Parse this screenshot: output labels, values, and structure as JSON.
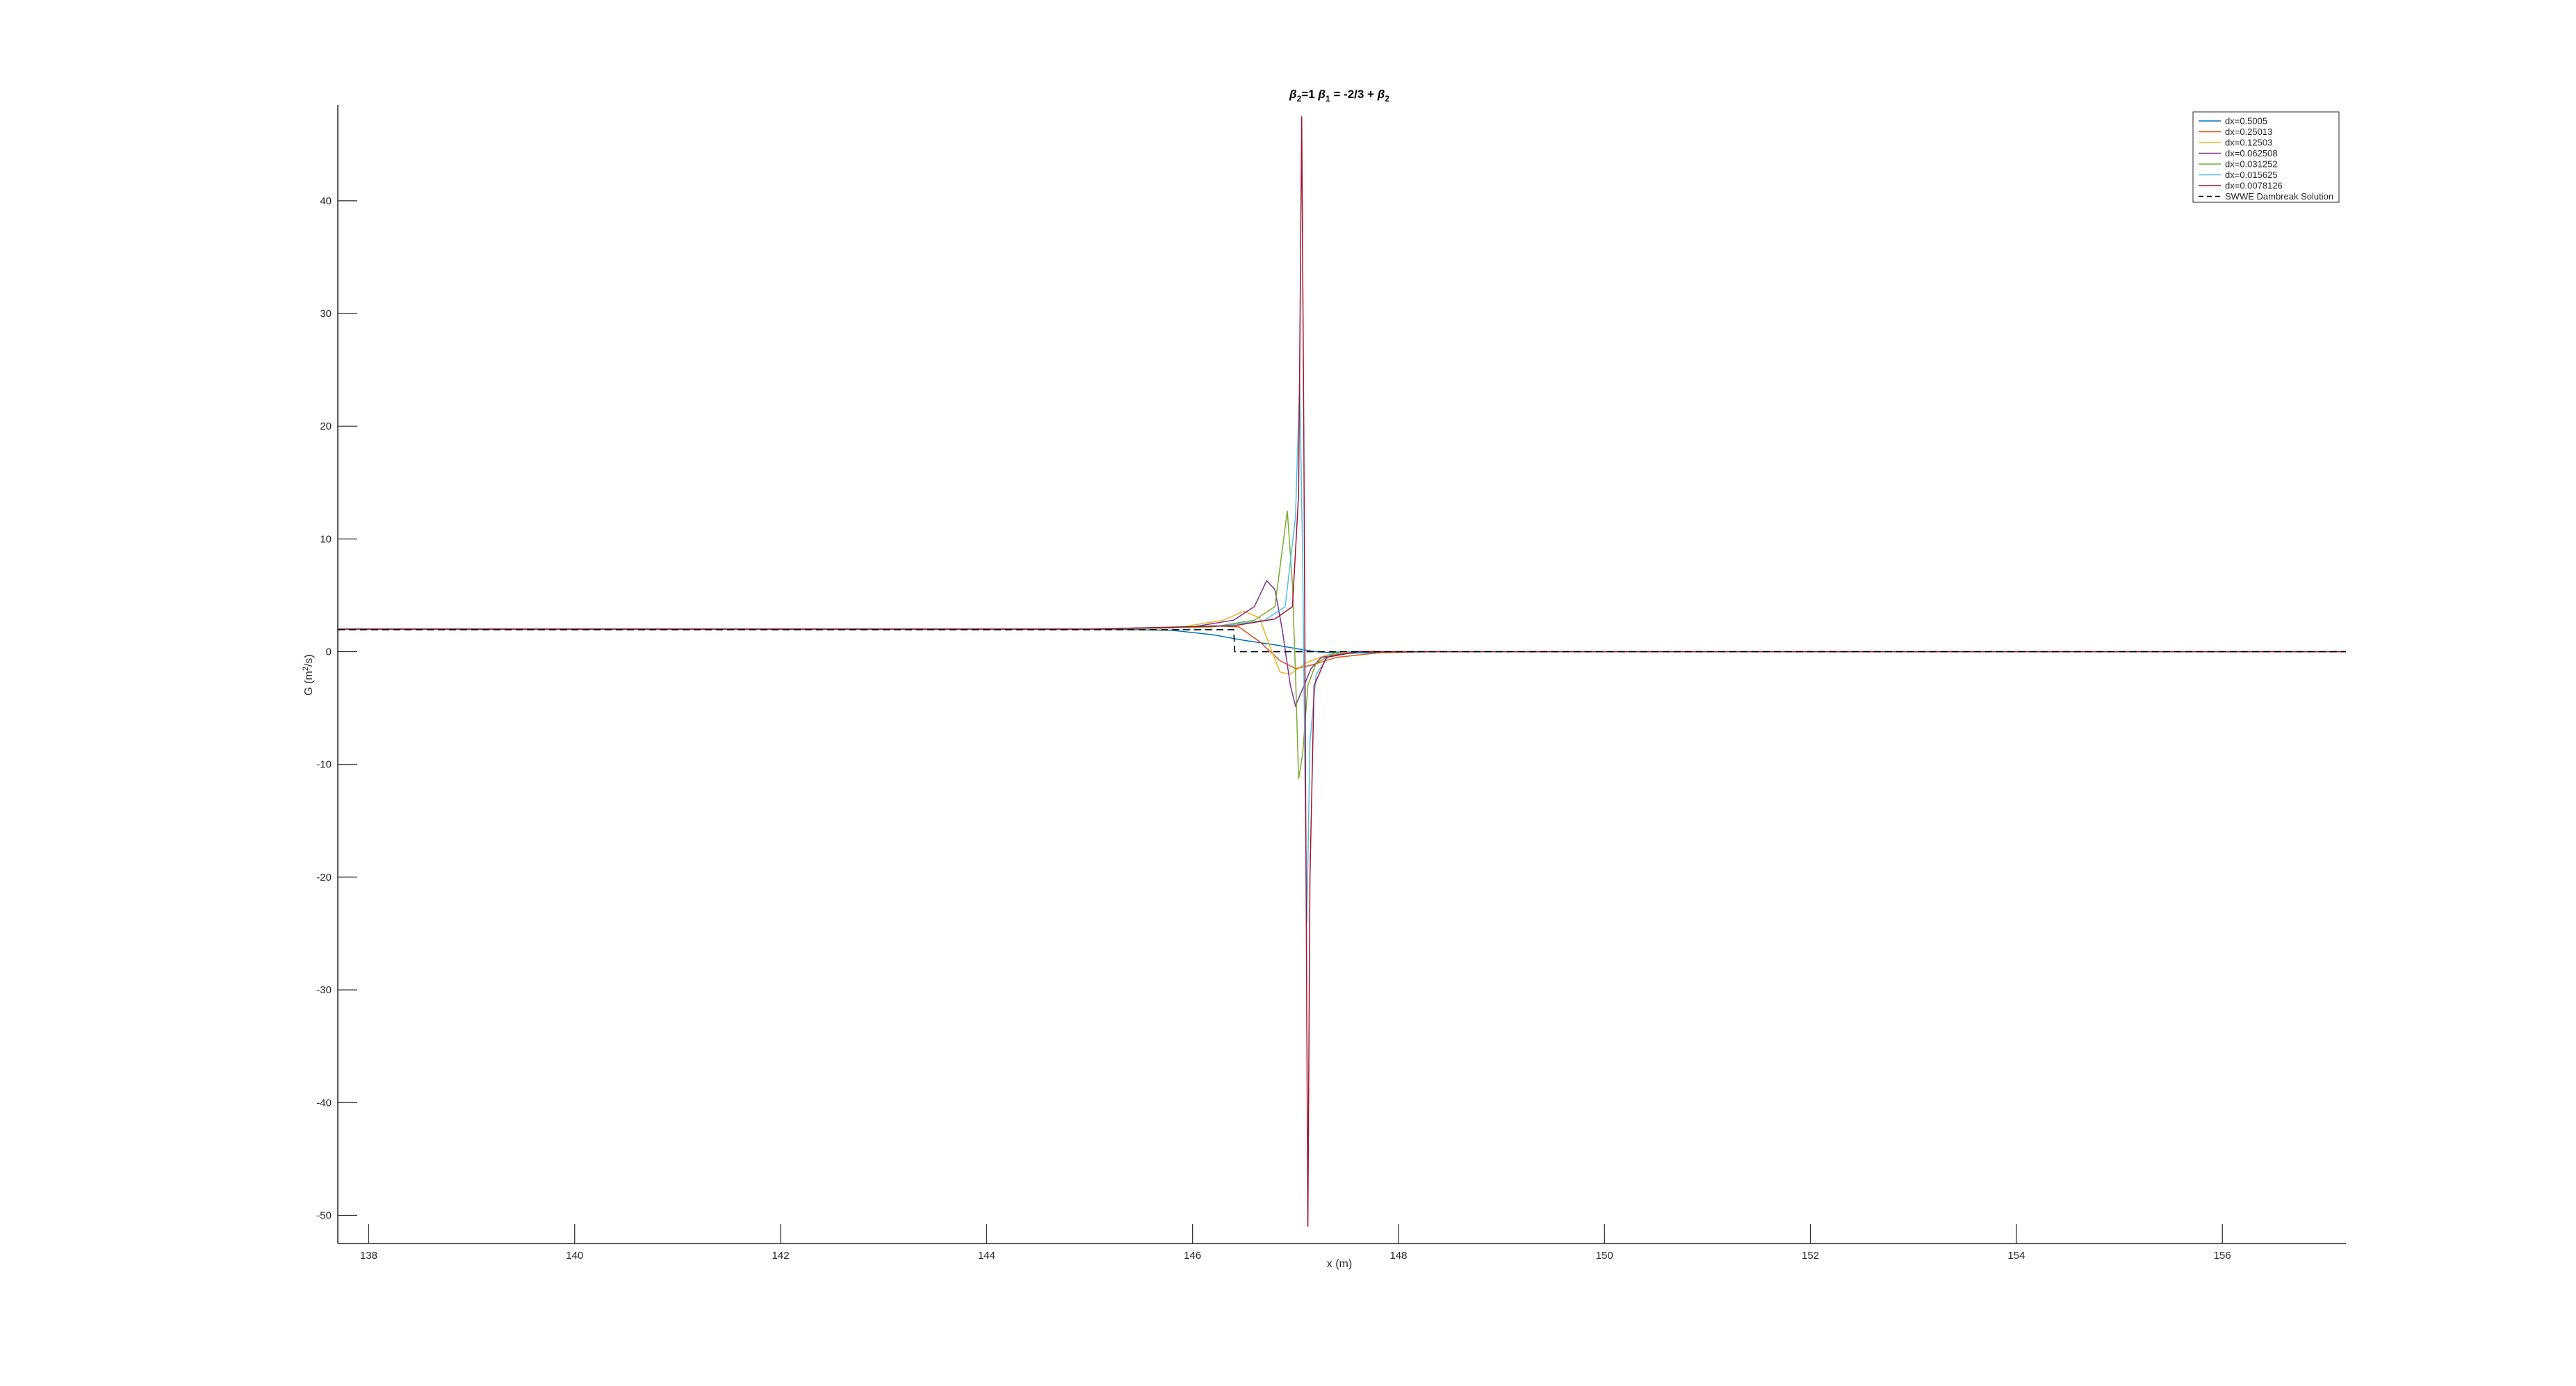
{
  "chart_data": {
    "type": "line",
    "title_parts": {
      "b2": "β",
      "b2_sub": "2",
      "eq1": "=1  ",
      "b1": "β",
      "b1_sub": "1",
      "eq2": " = -2/3 + ",
      "b3": "β",
      "b3_sub": "2"
    },
    "xlabel": "x (m)",
    "ylabel_parts": {
      "pre": "G (m",
      "sup": "2",
      "post": "/s)"
    },
    "xlim": [
      137.7,
      157.2
    ],
    "ylim": [
      -52.5,
      48.5
    ],
    "xticks": [
      138,
      140,
      142,
      144,
      146,
      148,
      150,
      152,
      154,
      156
    ],
    "yticks": [
      -50,
      -40,
      -30,
      -20,
      -10,
      0,
      10,
      20,
      30,
      40
    ],
    "grid": false,
    "legend_position": "top-right",
    "series": [
      {
        "name": "dx=0.5005",
        "color": "#0072BD",
        "dash": false,
        "points": [
          [
            137.7,
            2.0
          ],
          [
            145.0,
            2.0
          ],
          [
            145.8,
            1.9
          ],
          [
            146.2,
            1.5
          ],
          [
            146.5,
            1.0
          ],
          [
            146.8,
            0.6
          ],
          [
            147.05,
            0.2
          ],
          [
            147.2,
            0.0
          ],
          [
            147.5,
            -0.15
          ],
          [
            147.8,
            -0.05
          ],
          [
            148.5,
            0.0
          ],
          [
            157.2,
            0.0
          ]
        ]
      },
      {
        "name": "dx=0.25013",
        "color": "#D95319",
        "dash": false,
        "points": [
          [
            137.7,
            2.0
          ],
          [
            145.0,
            2.0
          ],
          [
            145.8,
            2.1
          ],
          [
            146.2,
            2.3
          ],
          [
            146.45,
            2.2
          ],
          [
            146.65,
            0.9
          ],
          [
            146.85,
            -0.8
          ],
          [
            147.0,
            -1.5
          ],
          [
            147.15,
            -1.2
          ],
          [
            147.4,
            -0.5
          ],
          [
            147.8,
            -0.1
          ],
          [
            148.2,
            0.0
          ],
          [
            157.2,
            0.0
          ]
        ]
      },
      {
        "name": "dx=0.12503",
        "color": "#EDB120",
        "dash": false,
        "points": [
          [
            137.7,
            2.0
          ],
          [
            145.0,
            2.0
          ],
          [
            145.9,
            2.2
          ],
          [
            146.3,
            2.8
          ],
          [
            146.5,
            3.6
          ],
          [
            146.65,
            3.0
          ],
          [
            146.75,
            0.5
          ],
          [
            146.85,
            -1.8
          ],
          [
            146.95,
            -2.0
          ],
          [
            147.1,
            -1.0
          ],
          [
            147.3,
            -0.3
          ],
          [
            147.6,
            0.0
          ],
          [
            157.2,
            0.0
          ]
        ]
      },
      {
        "name": "dx=0.062508",
        "color": "#7E2F8E",
        "dash": false,
        "points": [
          [
            137.7,
            2.0
          ],
          [
            145.0,
            2.0
          ],
          [
            146.0,
            2.2
          ],
          [
            146.4,
            2.8
          ],
          [
            146.6,
            4.0
          ],
          [
            146.72,
            6.3
          ],
          [
            146.8,
            5.5
          ],
          [
            146.87,
            2.0
          ],
          [
            146.95,
            -3.0
          ],
          [
            147.0,
            -4.8
          ],
          [
            147.06,
            -3.5
          ],
          [
            147.15,
            -1.5
          ],
          [
            147.25,
            -0.5
          ],
          [
            147.6,
            0.0
          ],
          [
            157.2,
            0.0
          ]
        ]
      },
      {
        "name": "dx=0.031252",
        "color": "#77AC30",
        "dash": false,
        "points": [
          [
            137.7,
            2.0
          ],
          [
            145.0,
            2.0
          ],
          [
            146.2,
            2.2
          ],
          [
            146.6,
            2.8
          ],
          [
            146.8,
            4.0
          ],
          [
            146.92,
            12.5
          ],
          [
            146.97,
            6.0
          ],
          [
            147.0,
            -2.0
          ],
          [
            147.03,
            -11.3
          ],
          [
            147.07,
            -9.0
          ],
          [
            147.12,
            -3.0
          ],
          [
            147.2,
            -1.0
          ],
          [
            147.4,
            0.0
          ],
          [
            157.2,
            0.0
          ]
        ]
      },
      {
        "name": "dx=0.015625",
        "color": "#4DBEEE",
        "dash": false,
        "points": [
          [
            137.7,
            2.0
          ],
          [
            145.0,
            2.0
          ],
          [
            146.3,
            2.3
          ],
          [
            146.7,
            2.8
          ],
          [
            146.9,
            4.0
          ],
          [
            147.0,
            12.0
          ],
          [
            147.04,
            24.0
          ],
          [
            147.07,
            8.0
          ],
          [
            147.09,
            -10.0
          ],
          [
            147.11,
            -24.0
          ],
          [
            147.14,
            -8.0
          ],
          [
            147.2,
            -2.0
          ],
          [
            147.35,
            0.0
          ],
          [
            157.2,
            0.0
          ]
        ]
      },
      {
        "name": "dx=0.0078126",
        "color": "#A2142F",
        "dash": false,
        "points": [
          [
            137.7,
            2.0
          ],
          [
            145.0,
            2.0
          ],
          [
            146.4,
            2.3
          ],
          [
            146.8,
            2.9
          ],
          [
            146.97,
            4.0
          ],
          [
            147.03,
            14.0
          ],
          [
            147.06,
            47.5
          ],
          [
            147.08,
            20.0
          ],
          [
            147.1,
            -15.0
          ],
          [
            147.12,
            -51.0
          ],
          [
            147.14,
            -20.0
          ],
          [
            147.18,
            -3.0
          ],
          [
            147.3,
            -0.5
          ],
          [
            147.6,
            0.0
          ],
          [
            157.2,
            0.0
          ]
        ]
      },
      {
        "name": "SWWE Dambreak Solution",
        "color": "#000000",
        "dash": true,
        "points": [
          [
            137.7,
            1.95
          ],
          [
            146.4,
            1.95
          ],
          [
            146.41,
            0.0
          ],
          [
            157.2,
            0.0
          ]
        ]
      }
    ],
    "legend_entries": [
      "dx=0.5005",
      "dx=0.25013",
      "dx=0.12503",
      "dx=0.062508",
      "dx=0.031252",
      "dx=0.015625",
      "dx=0.0078126",
      "SWWE Dambreak Solution"
    ]
  }
}
